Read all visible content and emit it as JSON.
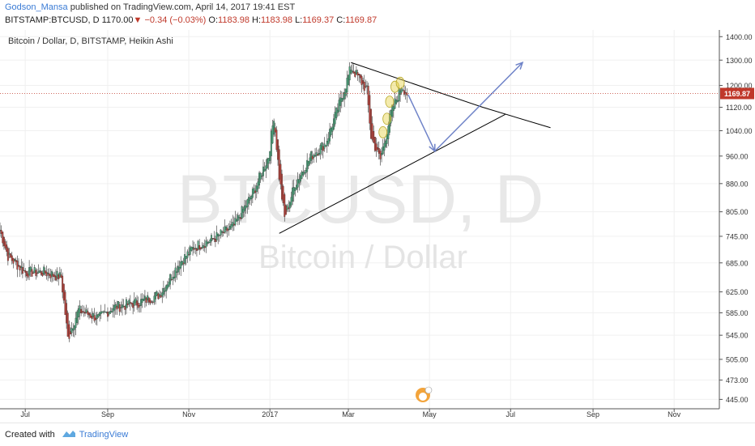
{
  "header": {
    "author": "Godson_Mansa",
    "published_text": "published on TradingView.com, April 14, 2017 19:41 EST",
    "symbol": "BITSTAMP:BTCUSD, D",
    "last": "1170.00",
    "change_arrow": "▼",
    "change": "−0.34 (−0.03%)",
    "o_label": "O:",
    "o_value": "1183.98",
    "h_label": "H:",
    "h_value": "1183.98",
    "l_label": "L:",
    "l_value": "1169.37",
    "c_label": "C:",
    "c_value": "1169.87"
  },
  "footer": {
    "created_with": "Created with",
    "brand": "TradingView"
  },
  "chart_data": {
    "type": "candlestick",
    "title": "Bitcoin / Dollar, D, BITSTAMP, Heikin Ashi",
    "watermark_symbol": "BTCUSD, D",
    "watermark_name": "Bitcoin / Dollar",
    "current_price_label": "1169.87",
    "x_tick_labels": [
      "Jul",
      "Sep",
      "Nov",
      "2017",
      "Mar",
      "May",
      "Jul",
      "Sep",
      "Nov"
    ],
    "x_tick_dates": [
      "2016-07-01",
      "2016-09-01",
      "2016-11-01",
      "2017-01-01",
      "2017-03-01",
      "2017-05-01",
      "2017-07-01",
      "2017-09-01",
      "2017-11-01"
    ],
    "y_tick_labels": [
      "1400.00",
      "1300.00",
      "1200.00",
      "1120.00",
      "1040.00",
      "960.00",
      "880.00",
      "805.00",
      "745.00",
      "685.00",
      "625.00",
      "585.00",
      "545.00",
      "505.00",
      "473.00",
      "445.00"
    ],
    "y_scale": "log",
    "x_range": [
      "2016-06-12",
      "2017-12-05"
    ],
    "y_range": [
      432,
      1430
    ],
    "key_points": [
      {
        "date": "2016-06-12",
        "price": 760
      },
      {
        "date": "2016-06-18",
        "price": 700
      },
      {
        "date": "2016-07-01",
        "price": 665
      },
      {
        "date": "2016-07-15",
        "price": 665
      },
      {
        "date": "2016-07-28",
        "price": 655
      },
      {
        "date": "2016-08-02",
        "price": 540
      },
      {
        "date": "2016-08-10",
        "price": 590
      },
      {
        "date": "2016-08-25",
        "price": 575
      },
      {
        "date": "2016-09-05",
        "price": 595
      },
      {
        "date": "2016-09-25",
        "price": 605
      },
      {
        "date": "2016-10-10",
        "price": 620
      },
      {
        "date": "2016-10-25",
        "price": 685
      },
      {
        "date": "2016-11-05",
        "price": 720
      },
      {
        "date": "2016-11-20",
        "price": 740
      },
      {
        "date": "2016-12-05",
        "price": 770
      },
      {
        "date": "2016-12-20",
        "price": 860
      },
      {
        "date": "2016-12-31",
        "price": 960
      },
      {
        "date": "2017-01-04",
        "price": 1090
      },
      {
        "date": "2017-01-08",
        "price": 900
      },
      {
        "date": "2017-01-12",
        "price": 790
      },
      {
        "date": "2017-01-20",
        "price": 880
      },
      {
        "date": "2017-02-01",
        "price": 960
      },
      {
        "date": "2017-02-12",
        "price": 1000
      },
      {
        "date": "2017-02-25",
        "price": 1170
      },
      {
        "date": "2017-03-03",
        "price": 1270
      },
      {
        "date": "2017-03-10",
        "price": 1220
      },
      {
        "date": "2017-03-15",
        "price": 1180
      },
      {
        "date": "2017-03-18",
        "price": 1020
      },
      {
        "date": "2017-03-25",
        "price": 950
      },
      {
        "date": "2017-04-02",
        "price": 1100
      },
      {
        "date": "2017-04-10",
        "price": 1200
      },
      {
        "date": "2017-04-14",
        "price": 1170
      }
    ],
    "drawings": {
      "upper_trendline": [
        [
          "2017-03-03",
          1290
        ],
        [
          "2017-06-10",
          1120
        ],
        [
          "2017-07-31",
          1050
        ]
      ],
      "lower_trendline": [
        [
          "2017-01-08",
          752
        ],
        [
          "2017-06-27",
          1095
        ]
      ],
      "projection_path": [
        [
          "2017-04-15",
          1165
        ],
        [
          "2017-05-05",
          975
        ],
        [
          "2017-07-10",
          1290
        ]
      ],
      "annotation_circles": [
        [
          "2017-03-27",
          1035
        ],
        [
          "2017-03-30",
          1080
        ],
        [
          "2017-04-01",
          1140
        ],
        [
          "2017-04-05",
          1195
        ],
        [
          "2017-04-09",
          1210
        ]
      ]
    },
    "colors": {
      "up": "#4aa37a",
      "down": "#b8423b",
      "price_line": "#c0392b",
      "projection": "#6f83c8",
      "trendline": "#000000",
      "annotation": "#e6d34a",
      "watermark": "#e8e8e8"
    }
  }
}
